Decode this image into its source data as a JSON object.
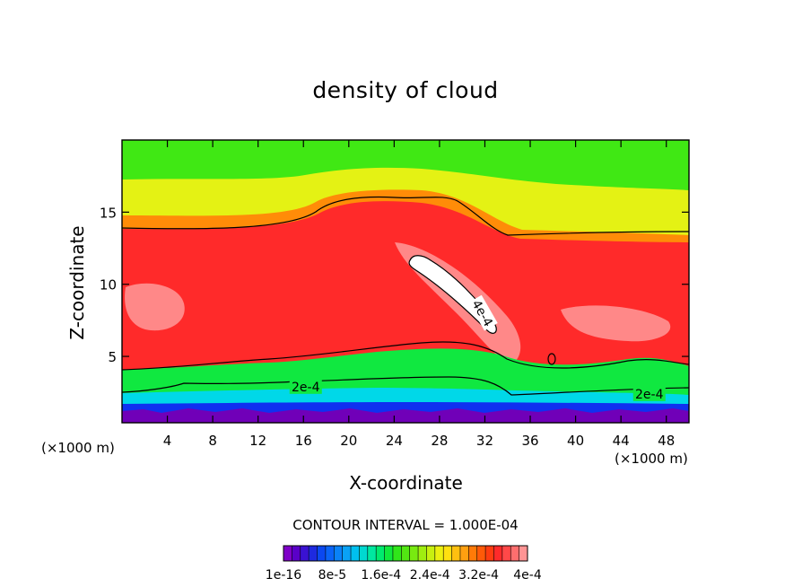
{
  "chart_data": {
    "type": "heatmap",
    "title": "density of cloud",
    "xlabel": "X-coordinate",
    "ylabel": "Z-coordinate",
    "x_unit": "(×1000 m)",
    "xlim": [
      0,
      50
    ],
    "ylim": [
      0.4,
      20
    ],
    "x_ticks": [
      4,
      8,
      12,
      16,
      20,
      24,
      28,
      32,
      36,
      40,
      44,
      48
    ],
    "y_ticks": [
      5,
      10,
      15
    ],
    "contour_interval_text": "CONTOUR INTERVAL = 1.000E-04",
    "contour_labels": [
      {
        "text": "2e-4",
        "x": 16.2,
        "z": 2.9
      },
      {
        "text": "2e-4",
        "x": 46.5,
        "z": 2.4
      },
      {
        "text": "4e-4",
        "x": 31.8,
        "z": 8.0
      }
    ],
    "colorbar": {
      "colors": [
        "#7f00c8",
        "#5a00c8",
        "#3a12d2",
        "#1e2ae0",
        "#0b48f0",
        "#0a64f7",
        "#0a82f7",
        "#0aa2f5",
        "#00c0f0",
        "#00d8d0",
        "#00e8a0",
        "#00ea6e",
        "#10e83c",
        "#30e61a",
        "#52e612",
        "#78ea10",
        "#a0ee10",
        "#c8f010",
        "#ecf010",
        "#ffe010",
        "#ffc010",
        "#ffa010",
        "#ff7a08",
        "#ff5a08",
        "#ff3c10",
        "#ff2a2a",
        "#ff4848",
        "#ff6e6e",
        "#ff9494"
      ],
      "tick_labels": [
        "1e-16",
        "8e-5",
        "1.6e-4",
        "2.4e-4",
        "3.2e-4",
        "4e-4"
      ]
    },
    "colors": {
      "bg_top": "#40e814",
      "band_yellow": "#e4f214",
      "band_orange": "#ff8c08",
      "core_red": "#ff2a2a",
      "pink": "#ff8888",
      "max": "#ffffff",
      "lower_green": "#10e840",
      "cyan": "#00d8e8",
      "blue": "#1030f0",
      "purple": "#7000b8"
    }
  }
}
